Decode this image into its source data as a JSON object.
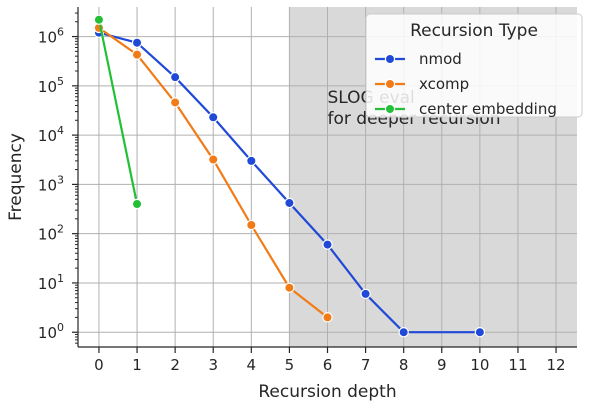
{
  "chart_data": {
    "type": "line",
    "xlabel": "Recursion depth",
    "ylabel": "Frequency",
    "xlim": [
      -0.55,
      12.55
    ],
    "ylim_log10": [
      -0.3,
      6.6
    ],
    "x_ticks": [
      0,
      1,
      2,
      3,
      4,
      5,
      6,
      7,
      8,
      9,
      10,
      11,
      12
    ],
    "y_tick_exponents": [
      0,
      1,
      2,
      3,
      4,
      5,
      6
    ],
    "y_tick_base": "10",
    "y_scale": "log",
    "grid": true,
    "shaded_region": {
      "x_from": 5,
      "x_to": 12.55,
      "color": "#d9d9d9"
    },
    "annotation": {
      "lines": [
        "SLOG eval",
        "for deeper recursion"
      ],
      "x": 6.0,
      "y": 60000
    },
    "legend": {
      "title": "Recursion Type",
      "position": "top-right"
    },
    "series": [
      {
        "name": "nmod",
        "color": "#1f49d6",
        "x": [
          0,
          1,
          2,
          3,
          4,
          5,
          6,
          7,
          8,
          10
        ],
        "y": [
          1200000,
          750000,
          150000,
          23000,
          3000,
          420,
          60,
          6,
          1,
          1
        ]
      },
      {
        "name": "xcomp",
        "color": "#f07b17",
        "x": [
          0,
          1,
          2,
          3,
          4,
          5,
          6
        ],
        "y": [
          1500000,
          430000,
          46000,
          3200,
          150,
          8,
          2
        ]
      },
      {
        "name": "center embedding",
        "color": "#22c036",
        "x": [
          0,
          1
        ],
        "y": [
          2200000,
          400
        ]
      }
    ]
  }
}
